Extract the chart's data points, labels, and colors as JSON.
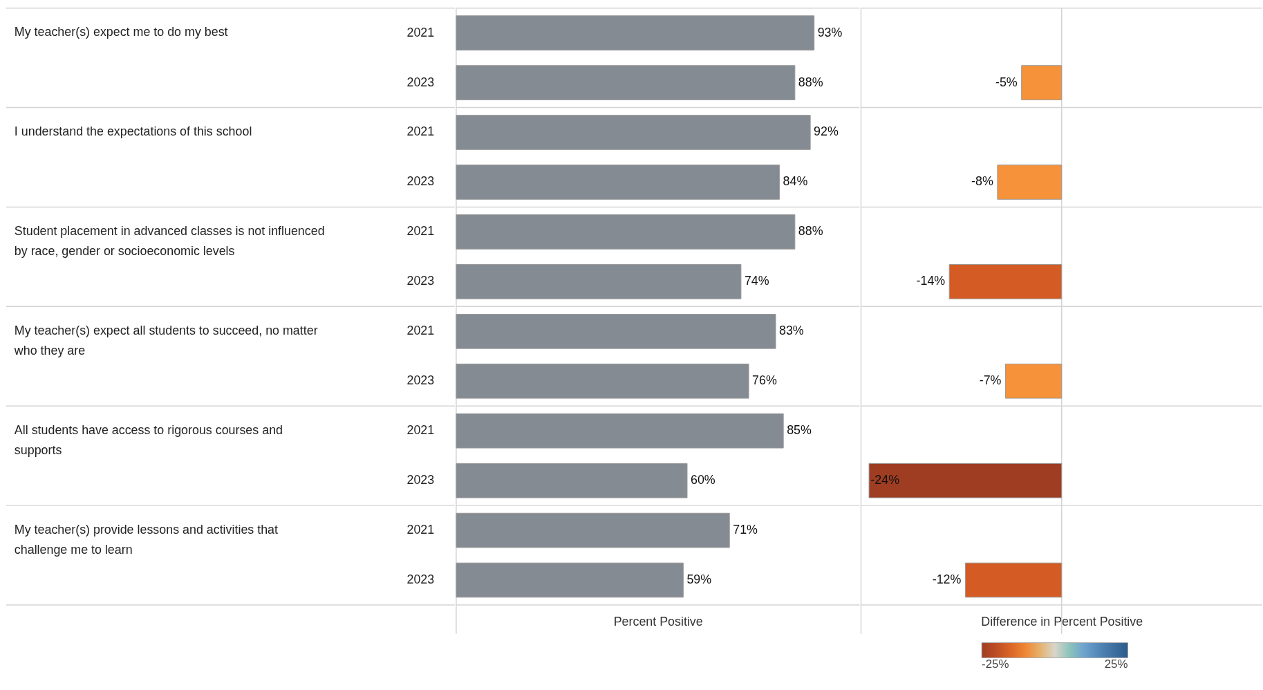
{
  "chart_data": [
    {
      "type": "bar",
      "orientation": "horizontal",
      "xlabel": "Percent Positive",
      "tick_labels": "y",
      "grid": false,
      "categories": [
        "My teacher(s) expect me to do my best",
        "I understand the expectations of this school",
        "Student placement in advanced classes is not influenced by race, gender or socioeconomic levels",
        "My teacher(s) expect all students to succeed, no matter who they are",
        "All students have access to rigorous courses and supports",
        "My teacher(s) provide lessons and activities that challenge me to learn"
      ],
      "series": [
        {
          "name": "2021",
          "color": "#848b92",
          "values": [
            93,
            92,
            88,
            83,
            85,
            71
          ],
          "value_labels": [
            "93%",
            "92%",
            "88%",
            "83%",
            "85%",
            "71%"
          ]
        },
        {
          "name": "2023",
          "color": "#848b92",
          "values": [
            88,
            84,
            74,
            76,
            60,
            59
          ],
          "value_labels": [
            "88%",
            "84%",
            "74%",
            "76%",
            "60%",
            "59%"
          ]
        }
      ]
    },
    {
      "type": "bar",
      "orientation": "horizontal",
      "xlabel": "Difference in Percent Positive",
      "tick_labels": false,
      "grid": false,
      "xlim": [
        -25,
        25
      ],
      "values": [
        -5,
        -8,
        -14,
        -7,
        -24,
        -12
      ],
      "colors": [
        "#f5923a",
        "#f5923a",
        "#d45b23",
        "#f5923a",
        "#9e3d22",
        "#d45b23"
      ],
      "value_labels": [
        "-5%",
        "-8%",
        "-14%",
        "-7%",
        "-24%",
        "-12%"
      ],
      "ref_lines": [
        {
          "axis": "x",
          "value": 0,
          "color": "#d3d3d3"
        }
      ],
      "clim": [
        -25,
        25
      ],
      "cticks": [
        {
          "value": -25,
          "label": "-25%"
        },
        {
          "value": 25,
          "label": "25%"
        }
      ]
    }
  ]
}
